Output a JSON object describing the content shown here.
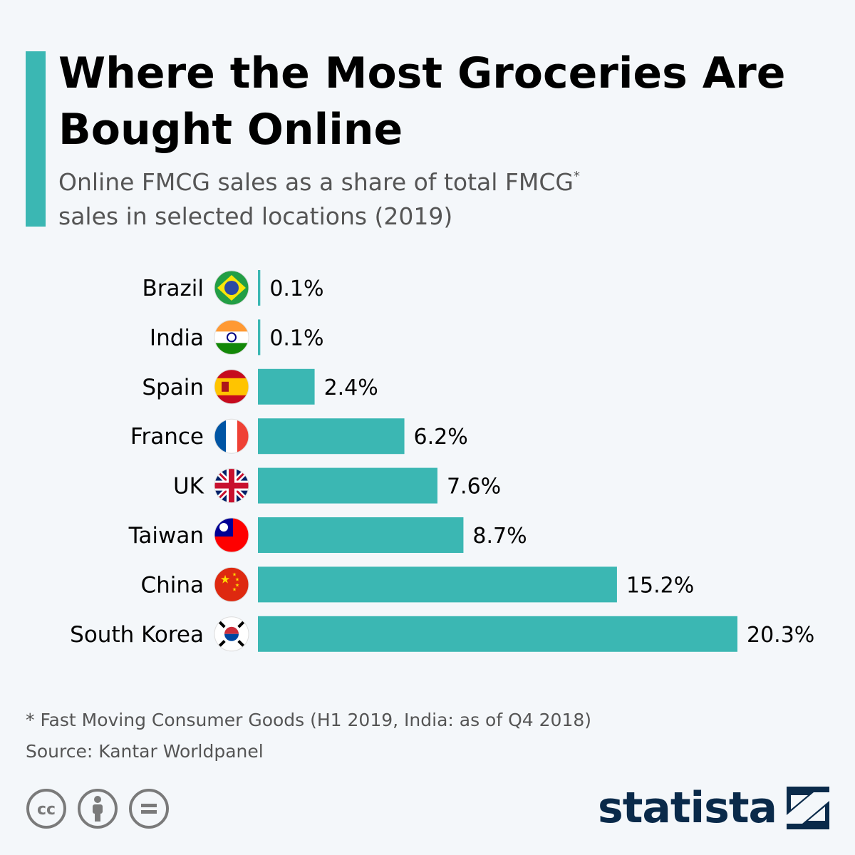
{
  "title": "Where the Most Groceries Are Bought Online",
  "subtitle": "Online FMCG sales as a share of total FMCG",
  "subtitle_mark": "*",
  "subtitle_line2": "sales in selected locations (2019)",
  "footnote": "* Fast Moving Consumer Goods (H1 2019, India: as of Q4 2018)",
  "source": "Source: Kantar Worldpanel",
  "brand": "statista",
  "colors": {
    "accent": "#3bb7b3",
    "bar": "#3bb7b3",
    "brand": "#0a2a4a",
    "text": "#000000",
    "muted": "#555555",
    "icon_grey": "#7a7a7a"
  },
  "icons": [
    "cc-icon",
    "attribution-icon",
    "no-derivatives-icon",
    "statista-logo-icon"
  ],
  "chart_data": {
    "type": "bar",
    "orientation": "horizontal",
    "categories": [
      "Brazil",
      "India",
      "Spain",
      "France",
      "UK",
      "Taiwan",
      "China",
      "South Korea"
    ],
    "values": [
      0.1,
      0.1,
      2.4,
      6.2,
      7.6,
      8.7,
      15.2,
      20.3
    ],
    "value_labels": [
      "0.1%",
      "0.1%",
      "2.4%",
      "6.2%",
      "7.6%",
      "8.7%",
      "15.2%",
      "20.3%"
    ],
    "flags": [
      "brazil-flag-icon",
      "india-flag-icon",
      "spain-flag-icon",
      "france-flag-icon",
      "uk-flag-icon",
      "taiwan-flag-icon",
      "china-flag-icon",
      "south-korea-flag-icon"
    ],
    "unit": "%",
    "grid": false,
    "legend": "none"
  }
}
